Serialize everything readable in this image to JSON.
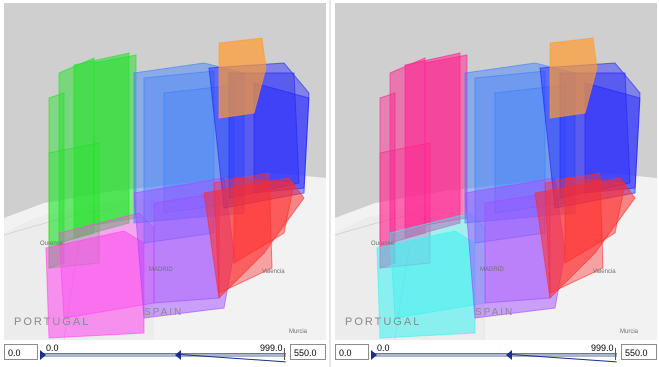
{
  "views": [
    {
      "id": "left",
      "map_labels": {
        "country1": "PORTUGAL",
        "country2": "SPAIN",
        "city1": "MADRID",
        "city2": "Valencia",
        "city3": "Murcia",
        "city4": "Ourense"
      },
      "colors": {
        "west": "#22e02a",
        "west_low": "#ff44f0",
        "center": "#3a7dff",
        "east": "#1e24ff",
        "south": "#ff2a2a",
        "north_east": "#ff9a2e",
        "center_low": "#a04bff"
      },
      "range": {
        "min_field": "0.0",
        "lo_label": "0.0",
        "hi_label": "999.0",
        "max_field": "550.0"
      }
    },
    {
      "id": "right",
      "map_labels": {
        "country1": "PORTUGAL",
        "country2": "SPAIN",
        "city1": "MADRID",
        "city2": "Valencia",
        "city3": "Murcia",
        "city4": "Ourense"
      },
      "colors": {
        "west": "#ff1f8e",
        "west_low": "#38f2f2",
        "center": "#3a7dff",
        "east": "#1e24ff",
        "south": "#ff2a2a",
        "north_east": "#ff9a2e",
        "center_low": "#a04bff"
      },
      "range": {
        "min_field": "0.0",
        "lo_label": "0.0",
        "hi_label": "999.0",
        "max_field": "550.0"
      }
    }
  ]
}
